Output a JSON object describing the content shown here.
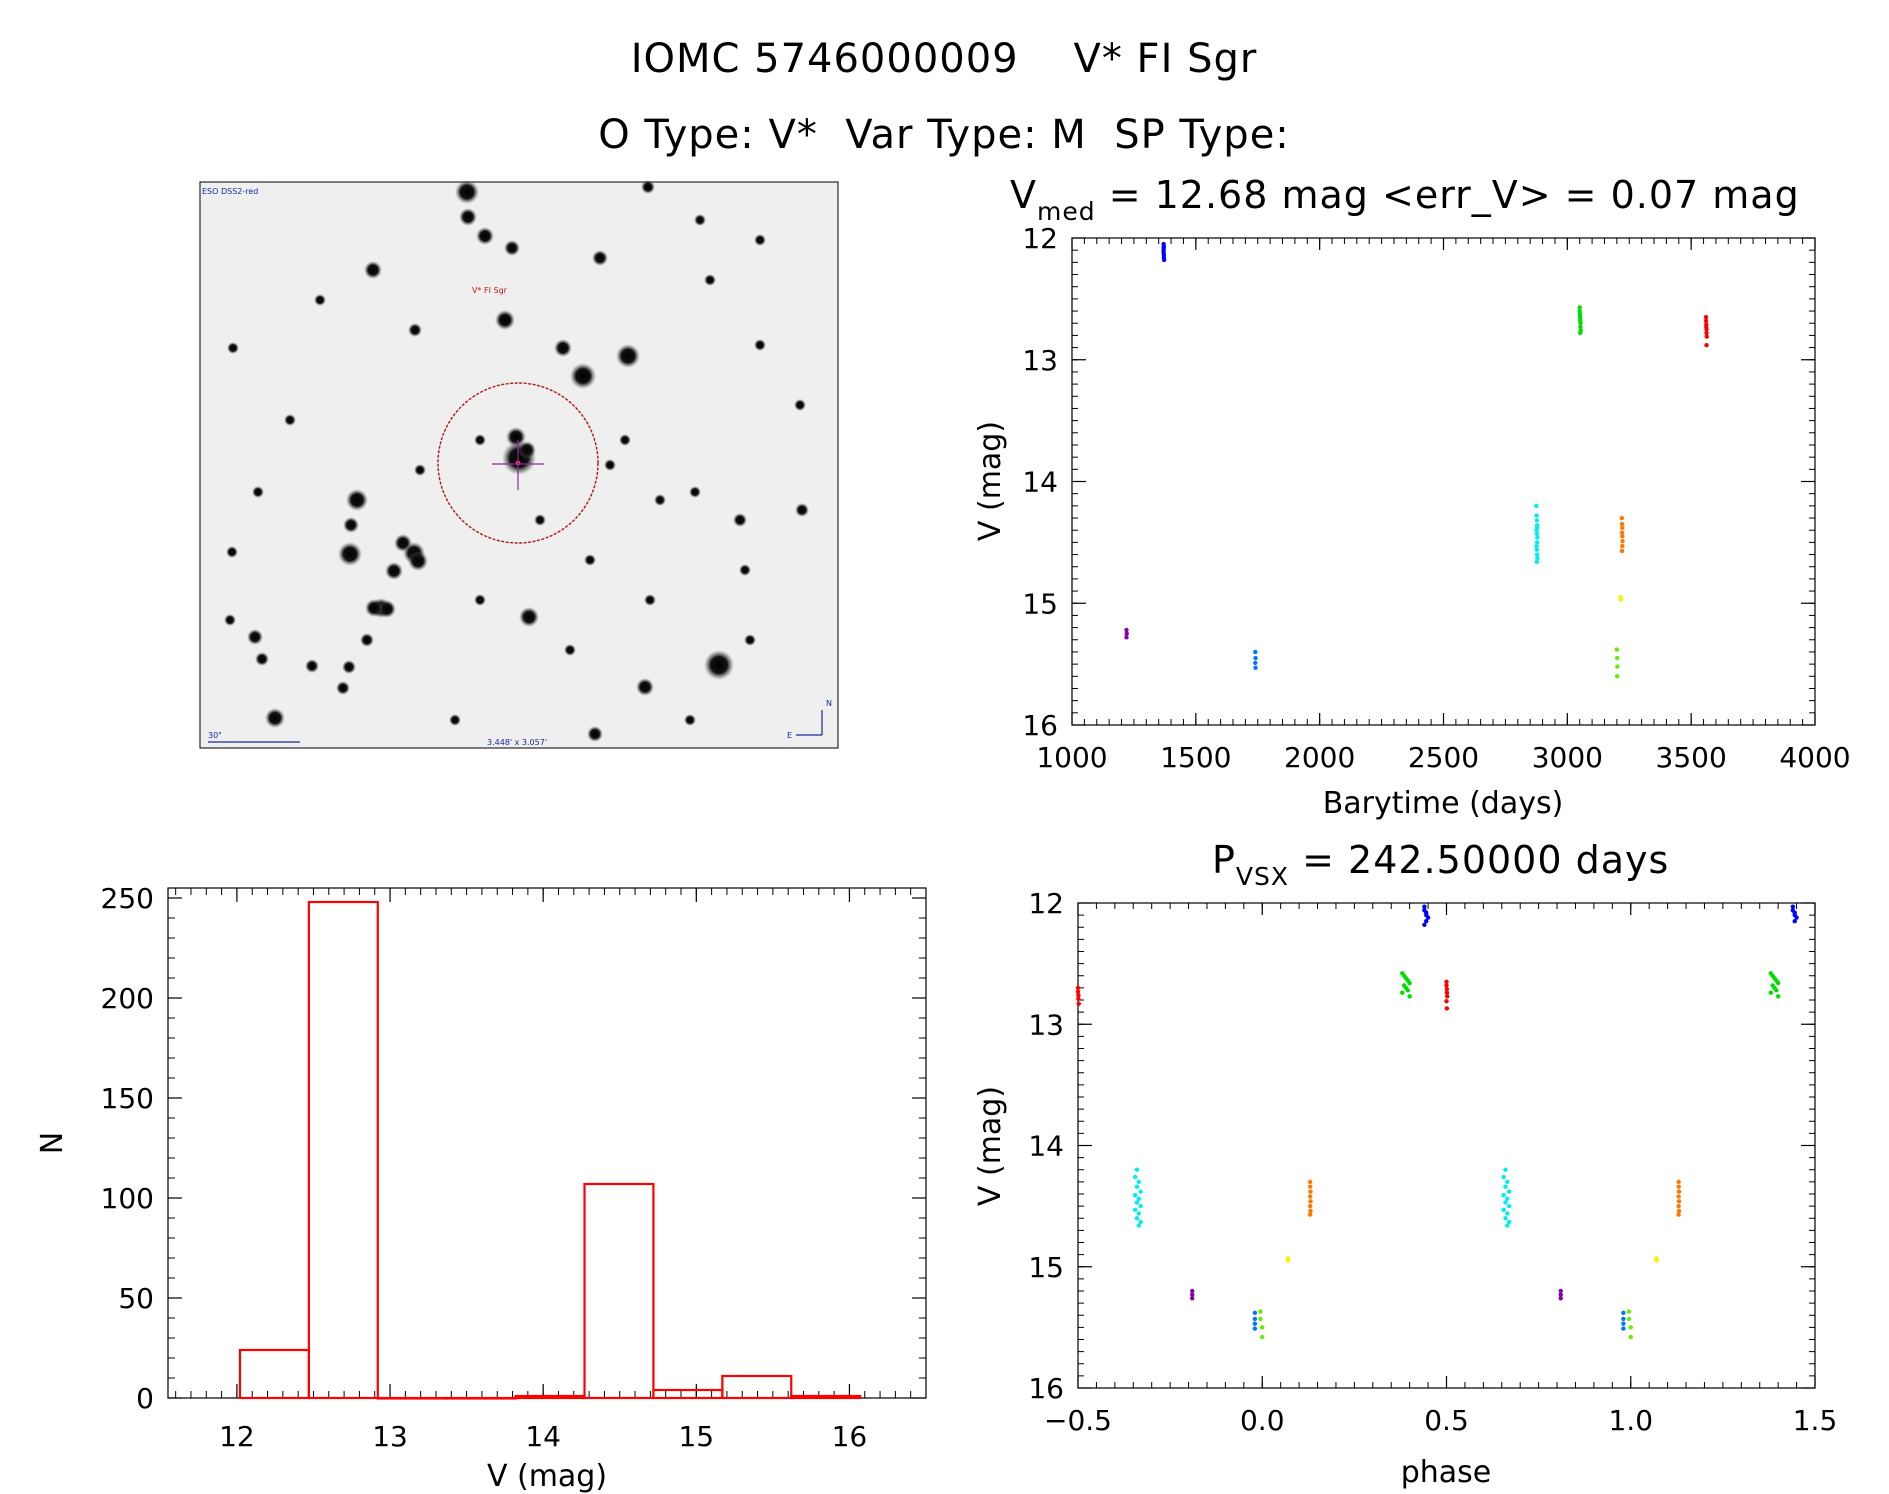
{
  "header": {
    "title": "IOMC 5746000009    V* FI Sgr",
    "subtitle": "O Type: V*  Var Type: M  SP Type:"
  },
  "finder": {
    "survey_label": "ESO DSS2-red",
    "target_label": "V* FI Sgr",
    "scale_label": "30\"",
    "fov_label": "3.448' x 3.057'",
    "north_label": "N",
    "east_label": "E"
  },
  "chart_data": [
    {
      "id": "lightcurve",
      "type": "scatter",
      "title_main": "V",
      "title_sub": "med",
      "title_rest": " = 12.68 mag <err_V> = 0.07 mag",
      "xlabel": "Barytime (days)",
      "ylabel": "V (mag)",
      "xlim": [
        1000,
        4000
      ],
      "ylim": [
        16,
        12
      ],
      "xticks": [
        "1000",
        "1500",
        "2000",
        "2500",
        "3000",
        "3500",
        "4000"
      ],
      "yticks": [
        "12",
        "13",
        "14",
        "15",
        "16"
      ],
      "series": [
        {
          "name": "s1",
          "color": "#0000ff",
          "x": [
            1370,
            1370,
            1370,
            1370,
            1371,
            1371,
            1371,
            1372
          ],
          "y": [
            12.05,
            12.08,
            12.1,
            12.12,
            12.14,
            12.07,
            12.16,
            12.18
          ]
        },
        {
          "name": "s2",
          "color": "#00dd00",
          "x": [
            3050,
            3050,
            3051,
            3051,
            3052,
            3052,
            3053,
            3053,
            3054,
            3052
          ],
          "y": [
            12.57,
            12.6,
            12.62,
            12.64,
            12.66,
            12.68,
            12.7,
            12.73,
            12.76,
            12.78
          ]
        },
        {
          "name": "s3",
          "color": "#ff0000",
          "x": [
            3560,
            3560,
            3561,
            3561,
            3562,
            3562,
            3563,
            3562
          ],
          "y": [
            12.65,
            12.68,
            12.71,
            12.73,
            12.75,
            12.78,
            12.81,
            12.88
          ]
        },
        {
          "name": "s4",
          "color": "#00eeee",
          "x": [
            2875,
            2876,
            2877,
            2878,
            2876,
            2877,
            2879,
            2878,
            2876,
            2877,
            2878,
            2879,
            2877,
            2878
          ],
          "y": [
            14.2,
            14.28,
            14.32,
            14.36,
            14.4,
            14.43,
            14.46,
            14.5,
            14.53,
            14.56,
            14.6,
            14.63,
            14.66,
            14.38
          ]
        },
        {
          "name": "s5",
          "color": "#ff7700",
          "x": [
            3220,
            3221,
            3222,
            3221,
            3222,
            3223,
            3222,
            3221
          ],
          "y": [
            14.3,
            14.35,
            14.38,
            14.42,
            14.45,
            14.49,
            14.53,
            14.57
          ]
        },
        {
          "name": "s6",
          "color": "#8800aa",
          "x": [
            1220,
            1221,
            1220
          ],
          "y": [
            15.22,
            15.25,
            15.28
          ]
        },
        {
          "name": "s7",
          "color": "#0077ff",
          "x": [
            1740,
            1741,
            1740,
            1741
          ],
          "y": [
            15.4,
            15.45,
            15.49,
            15.53
          ]
        },
        {
          "name": "s8",
          "color": "#ffee00",
          "x": [
            3215,
            3216
          ],
          "y": [
            14.95,
            14.97
          ]
        },
        {
          "name": "s9",
          "color": "#66ee00",
          "x": [
            3200,
            3201,
            3202,
            3201
          ],
          "y": [
            15.38,
            15.45,
            15.52,
            15.6
          ]
        }
      ]
    },
    {
      "id": "histogram",
      "type": "bar",
      "xlabel": "V (mag)",
      "ylabel": "N",
      "xlim": [
        11.55,
        16.5
      ],
      "ylim": [
        0,
        255
      ],
      "xticks": [
        "12",
        "13",
        "14",
        "15",
        "16"
      ],
      "yticks": [
        "0",
        "50",
        "100",
        "150",
        "200",
        "250"
      ],
      "color": "#ff0000",
      "bin_edges": [
        12.02,
        12.47,
        12.92,
        13.37,
        13.82,
        14.27,
        14.72,
        15.17,
        15.62,
        16.07
      ],
      "values": [
        24,
        248,
        0,
        0,
        1,
        107,
        4,
        11,
        1
      ]
    },
    {
      "id": "phased",
      "type": "scatter",
      "title_main": "P",
      "title_sub": "VSX",
      "title_rest": " = 242.50000 days",
      "xlabel": "phase",
      "ylabel": "V (mag)",
      "xlim": [
        -0.5,
        1.5
      ],
      "ylim": [
        16,
        12
      ],
      "xticks": [
        "−0.5",
        "0.0",
        "0.5",
        "1.0",
        "1.5"
      ],
      "yticks": [
        "12",
        "13",
        "14",
        "15",
        "16"
      ],
      "series": [
        {
          "name": "s1",
          "color": "#0000ff",
          "x": [
            0.44,
            0.44,
            0.445,
            0.445,
            0.45,
            0.445,
            0.44,
            1.44,
            1.44,
            1.445,
            1.445,
            1.45,
            1.445
          ],
          "y": [
            12.03,
            12.06,
            12.08,
            12.1,
            12.12,
            12.15,
            12.18,
            12.03,
            12.06,
            12.08,
            12.1,
            12.12,
            12.15
          ]
        },
        {
          "name": "s2",
          "color": "#00dd00",
          "x": [
            0.38,
            0.385,
            0.39,
            0.395,
            0.4,
            0.385,
            0.39,
            0.395,
            0.38,
            0.4,
            1.38,
            1.385,
            1.39,
            1.395,
            1.4,
            1.385,
            1.39,
            1.395,
            1.38,
            1.4
          ],
          "y": [
            12.58,
            12.6,
            12.62,
            12.64,
            12.66,
            12.68,
            12.7,
            12.72,
            12.74,
            12.77,
            12.58,
            12.6,
            12.62,
            12.64,
            12.66,
            12.68,
            12.7,
            12.72,
            12.74,
            12.77
          ]
        },
        {
          "name": "s3",
          "color": "#ff0000",
          "x": [
            0.5,
            0.5,
            0.501,
            0.501,
            0.502,
            0.5,
            0.501,
            -0.5,
            -0.5,
            -0.499,
            -0.499,
            -0.498
          ],
          "y": [
            12.65,
            12.68,
            12.71,
            12.74,
            12.77,
            12.81,
            12.87,
            12.7,
            12.73,
            12.76,
            12.79,
            12.83
          ]
        },
        {
          "name": "s4",
          "color": "#00eeee",
          "x": [
            -0.34,
            -0.345,
            -0.335,
            -0.34,
            -0.33,
            -0.345,
            -0.335,
            -0.34,
            -0.33,
            -0.345,
            -0.335,
            -0.34,
            -0.33,
            -0.335,
            0.66,
            0.655,
            0.665,
            0.66,
            0.67,
            0.655,
            0.665,
            0.66,
            0.67,
            0.655,
            0.665,
            0.66,
            0.67,
            0.665
          ],
          "y": [
            14.2,
            14.26,
            14.3,
            14.34,
            14.38,
            14.41,
            14.44,
            14.47,
            14.5,
            14.53,
            14.56,
            14.6,
            14.63,
            14.66,
            14.2,
            14.26,
            14.3,
            14.34,
            14.38,
            14.41,
            14.44,
            14.47,
            14.5,
            14.53,
            14.56,
            14.6,
            14.63,
            14.66
          ]
        },
        {
          "name": "s5",
          "color": "#ff7700",
          "x": [
            0.13,
            0.13,
            0.131,
            0.13,
            0.131,
            0.13,
            0.131,
            0.13,
            1.13,
            1.13,
            1.131,
            1.13,
            1.131,
            1.13,
            1.131,
            1.13
          ],
          "y": [
            14.3,
            14.34,
            14.38,
            14.42,
            14.46,
            14.5,
            14.54,
            14.57,
            14.3,
            14.34,
            14.38,
            14.42,
            14.46,
            14.5,
            14.54,
            14.57
          ]
        },
        {
          "name": "s6",
          "color": "#8800aa",
          "x": [
            -0.19,
            -0.19,
            -0.19,
            0.81,
            0.81,
            0.81
          ],
          "y": [
            15.2,
            15.23,
            15.26,
            15.2,
            15.23,
            15.26
          ]
        },
        {
          "name": "s7",
          "color": "#0077ff",
          "x": [
            -0.02,
            -0.02,
            -0.02,
            -0.02,
            0.98,
            0.98,
            0.98,
            0.98
          ],
          "y": [
            15.38,
            15.43,
            15.47,
            15.51,
            15.38,
            15.43,
            15.47,
            15.51
          ]
        },
        {
          "name": "s8",
          "color": "#ffee00",
          "x": [
            0.07,
            0.07,
            1.07,
            1.07
          ],
          "y": [
            14.93,
            14.95,
            14.93,
            14.95
          ]
        },
        {
          "name": "s9",
          "color": "#66ee00",
          "x": [
            -0.005,
            -0.005,
            0.0,
            0.0,
            0.995,
            0.995,
            1.0,
            1.0
          ],
          "y": [
            15.37,
            15.43,
            15.5,
            15.58,
            15.37,
            15.43,
            15.5,
            15.58
          ]
        }
      ]
    }
  ]
}
